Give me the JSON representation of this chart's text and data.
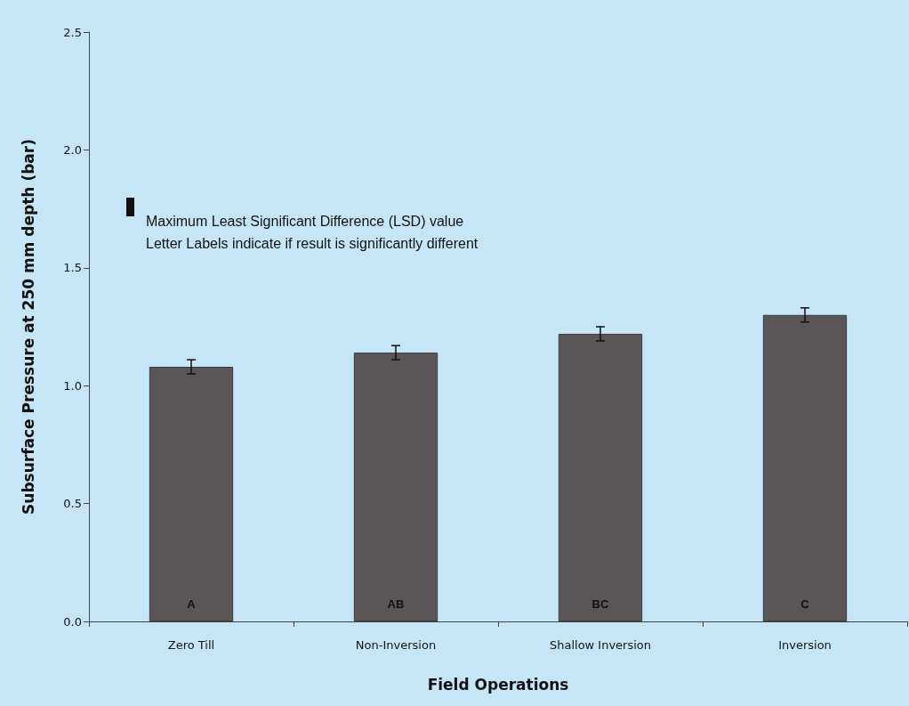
{
  "chart_data": {
    "type": "bar",
    "xlabel": "Field Operations",
    "ylabel": "Subsurface Pressure at 250 mm depth (bar)",
    "categories": [
      "Zero Till",
      "Non-Inversion",
      "Shallow Inversion",
      "Inversion"
    ],
    "values": [
      1.08,
      1.14,
      1.22,
      1.3
    ],
    "errors": [
      0.03,
      0.03,
      0.03,
      0.03
    ],
    "color": "#5a5658",
    "ylim": [
      0,
      2.5
    ],
    "yticks": [
      {
        "value": 0,
        "label": "0.0"
      },
      {
        "value": 0.5,
        "label": "0.5"
      },
      {
        "value": 1,
        "label": "1.0"
      },
      {
        "value": 1.5,
        "label": "1.5"
      },
      {
        "value": 2,
        "label": "2.0"
      },
      {
        "value": 2.5,
        "label": "2.5"
      }
    ],
    "grid": false,
    "annotations": [
      "Maximum Least Significant Difference (LSD) value",
      "Letter Labels indicate if result is significantly different",
      "A",
      "AB",
      "BC",
      "C"
    ]
  }
}
